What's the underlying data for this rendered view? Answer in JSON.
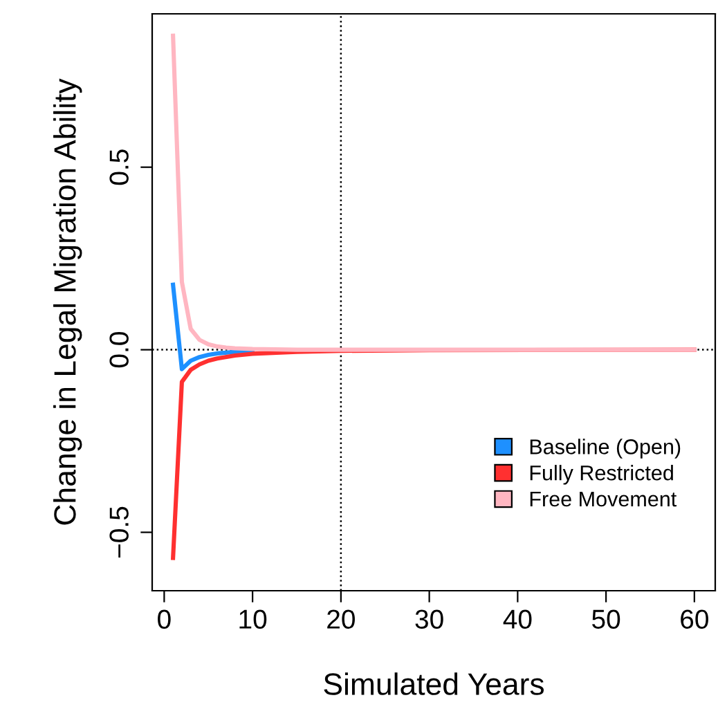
{
  "chart_data": {
    "type": "line",
    "xlabel": "Simulated Years",
    "ylabel": "Change in Legal Migration Ability",
    "xlim": [
      -1.36,
      62.36
    ],
    "ylim": [
      -0.66,
      0.92
    ],
    "xticks": [
      0,
      10,
      20,
      30,
      40,
      50,
      60
    ],
    "yticks": [
      {
        "value": -0.5,
        "label": "−0.5"
      },
      {
        "value": 0,
        "label": "0.0"
      },
      {
        "value": 0.5,
        "label": "0.5"
      }
    ],
    "grid": false,
    "legend": "bottom right",
    "line_style": "solid",
    "marker": "none",
    "ref_lines": [
      {
        "axis": "y",
        "value": 0,
        "line_style": "dotted",
        "color": "#000000"
      },
      {
        "axis": "x",
        "value": 20,
        "line_style": "dotted",
        "color": "#000000"
      }
    ],
    "series": [
      {
        "name": "Baseline (Open)",
        "color": "#1e90ff",
        "x": [
          1,
          2,
          3,
          4,
          5,
          6,
          8,
          10
        ],
        "values": [
          0.178,
          -0.053,
          -0.03,
          -0.02,
          -0.014,
          -0.01,
          -0.006,
          -0.004
        ]
      },
      {
        "name": "Fully Restricted",
        "color": "#ff3030",
        "x": [
          1,
          2,
          3,
          4,
          5,
          6,
          8,
          10,
          15,
          20,
          30,
          60
        ],
        "values": [
          -0.57,
          -0.088,
          -0.055,
          -0.04,
          -0.03,
          -0.024,
          -0.016,
          -0.011,
          -0.006,
          -0.003,
          -0.001,
          0
        ]
      },
      {
        "name": "Free Movement",
        "color": "#ffb6c1",
        "x": [
          1,
          2,
          3,
          4,
          5,
          6,
          7,
          8,
          10,
          15,
          60
        ],
        "values": [
          0.86,
          0.186,
          0.057,
          0.027,
          0.015,
          0.009,
          0.006,
          0.004,
          0.002,
          0,
          0
        ]
      }
    ]
  }
}
